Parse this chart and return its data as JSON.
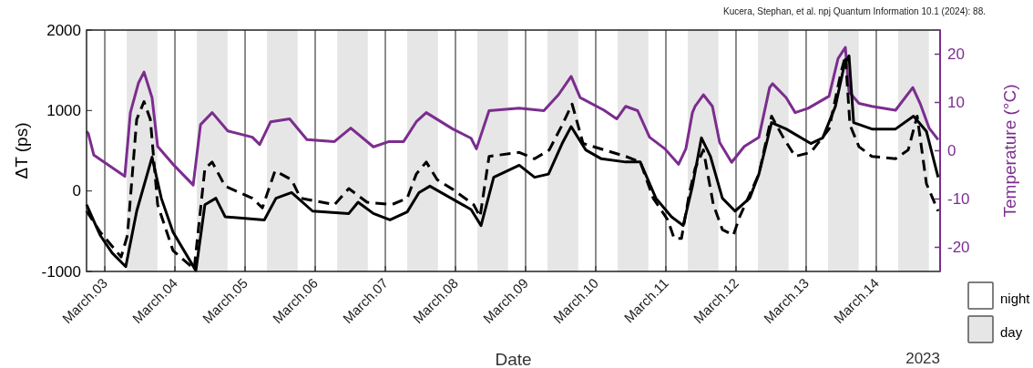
{
  "chart_data": {
    "type": "line",
    "xlabel": "Date",
    "ylabel": "ΔT (ps)",
    "y2label": "Temperature (°C)",
    "annotations": [
      "Kucera, Stephan, et al.  npj Quantum Information 10.1 (2024): 88.",
      "2023",
      "night"
    ],
    "xlim": [
      "2023-03-02T17:45",
      "2023-03-14T21:50"
    ],
    "xticks": [
      {
        "value": "2023-03-03",
        "label": "March.03"
      },
      {
        "value": "2023-03-04",
        "label": "March.04"
      },
      {
        "value": "2023-03-05",
        "label": "March.05"
      },
      {
        "value": "2023-03-06",
        "label": "March.06"
      },
      {
        "value": "2023-03-07",
        "label": "March.07"
      },
      {
        "value": "2023-03-08",
        "label": "March.08"
      },
      {
        "value": "2023-03-09",
        "label": "March.09"
      },
      {
        "value": "2023-03-10",
        "label": "March.10"
      },
      {
        "value": "2023-03-11",
        "label": "March.11"
      },
      {
        "value": "2023-03-12",
        "label": "March.12"
      },
      {
        "value": "2023-03-13",
        "label": "March.13"
      },
      {
        "value": "2023-03-14",
        "label": "March.14"
      }
    ],
    "ylim": [
      -1000,
      2000
    ],
    "yticks": [
      -1000,
      0,
      1000,
      2000
    ],
    "y2lim": [
      -25,
      25
    ],
    "y2ticks": [
      -20,
      -10,
      0,
      10,
      20
    ],
    "grid": "x",
    "legend": "bottom right",
    "bands": [
      {
        "axis": "x",
        "from": "2023-03-03T07:30",
        "to": "2023-03-03T18:00",
        "label": "day",
        "color": "#e6e6e6"
      },
      {
        "axis": "x",
        "from": "2023-03-04T07:30",
        "to": "2023-03-04T18:00",
        "color": "#e6e6e6"
      },
      {
        "axis": "x",
        "from": "2023-03-05T07:30",
        "to": "2023-03-05T18:00",
        "color": "#e6e6e6"
      },
      {
        "axis": "x",
        "from": "2023-03-06T07:30",
        "to": "2023-03-06T18:00",
        "color": "#e6e6e6"
      },
      {
        "axis": "x",
        "from": "2023-03-07T07:30",
        "to": "2023-03-07T18:00",
        "color": "#e6e6e6"
      },
      {
        "axis": "x",
        "from": "2023-03-08T07:30",
        "to": "2023-03-08T18:00",
        "color": "#e6e6e6"
      },
      {
        "axis": "x",
        "from": "2023-03-09T07:30",
        "to": "2023-03-09T18:00",
        "color": "#e6e6e6"
      },
      {
        "axis": "x",
        "from": "2023-03-10T07:30",
        "to": "2023-03-10T18:00",
        "color": "#e6e6e6"
      },
      {
        "axis": "x",
        "from": "2023-03-11T07:30",
        "to": "2023-03-11T18:00",
        "color": "#e6e6e6"
      },
      {
        "axis": "x",
        "from": "2023-03-12T07:30",
        "to": "2023-03-12T18:00",
        "color": "#e6e6e6"
      },
      {
        "axis": "x",
        "from": "2023-03-13T07:30",
        "to": "2023-03-13T18:00",
        "color": "#e6e6e6"
      },
      {
        "axis": "x",
        "from": "2023-03-14T07:30",
        "to": "2023-03-14T18:00",
        "color": "#e6e6e6"
      }
    ],
    "series": [
      {
        "color": "#7b2d8e",
        "axis": "y2",
        "line_style": "solid",
        "x": [
          "2023-03-02T17:45",
          "2023-03-02T18:20",
          "2023-03-02T20:15",
          "2023-03-03T06:50",
          "2023-03-03T08:45",
          "2023-03-03T11:30",
          "2023-03-03T13:25",
          "2023-03-03T16:10",
          "2023-03-03T18:05",
          "2023-03-03T23:20",
          "2023-03-04T06:15",
          "2023-03-04T08:45",
          "2023-03-04T12:45",
          "2023-03-04T18:05",
          "2023-03-05T02:30",
          "2023-03-05T05:00",
          "2023-03-05T08:45",
          "2023-03-05T15:15",
          "2023-03-05T21:10",
          "2023-03-06T06:35",
          "2023-03-06T12:10",
          "2023-03-06T19:55",
          "2023-03-07T01:15",
          "2023-03-07T06:15",
          "2023-03-07T10:35",
          "2023-03-07T14:00",
          "2023-03-07T23:05",
          "2023-03-08T05:20",
          "2023-03-08T07:10",
          "2023-03-08T11:30",
          "2023-03-08T21:50",
          "2023-03-09T06:15",
          "2023-03-09T11:15",
          "2023-03-09T15:35",
          "2023-03-09T18:40",
          "2023-03-10T02:50",
          "2023-03-10T07:10",
          "2023-03-10T10:15",
          "2023-03-10T14:20",
          "2023-03-10T18:25",
          "2023-03-10T23:40",
          "2023-03-11T04:20",
          "2023-03-11T06:50",
          "2023-03-11T09:05",
          "2023-03-11T10:00",
          "2023-03-11T12:50",
          "2023-03-11T15:55",
          "2023-03-11T18:25",
          "2023-03-11T22:30",
          "2023-03-12T02:50",
          "2023-03-12T07:50",
          "2023-03-12T11:30",
          "2023-03-12T12:30",
          "2023-03-12T17:10",
          "2023-03-12T20:15",
          "2023-03-13T00:40",
          "2023-03-13T07:50",
          "2023-03-13T10:55",
          "2023-03-13T13:25",
          "2023-03-13T14:40",
          "2023-03-13T18:05",
          "2023-03-13T22:30",
          "2023-03-14T06:35",
          "2023-03-14T12:30",
          "2023-03-14T15:00",
          "2023-03-14T18:05",
          "2023-03-14T21:10"
        ],
        "values": [
          4,
          3.6,
          -0.9,
          -5.3,
          7.9,
          14,
          16.3,
          11,
          0.9,
          -2.8,
          -7.1,
          5.4,
          7.9,
          4.1,
          2.8,
          1.3,
          6,
          6.6,
          2.3,
          1.9,
          4.7,
          0.8,
          1.9,
          1.9,
          6,
          7.9,
          4.5,
          2.6,
          0.4,
          8.3,
          8.8,
          8.3,
          11.6,
          15.4,
          11,
          8.4,
          6.6,
          9.2,
          8.3,
          2.8,
          0.4,
          -2.8,
          0.4,
          7.9,
          9.2,
          11.6,
          9.2,
          1.7,
          -2.4,
          0.9,
          2.8,
          13.1,
          13.9,
          11,
          7.9,
          8.8,
          11.3,
          19.1,
          21.4,
          12.2,
          9.8,
          9.2,
          8.4,
          13.1,
          9.8,
          4.7,
          2.3
        ]
      },
      {
        "color": "#000000",
        "line_style": "solid",
        "x": [
          "2023-03-02T17:45",
          "2023-03-02T22:25",
          "2023-03-03T02:30",
          "2023-03-03T07:10",
          "2023-03-03T10:55",
          "2023-03-03T16:10",
          "2023-03-03T19:20",
          "2023-03-03T23:20",
          "2023-03-04T07:10",
          "2023-03-04T10:15",
          "2023-03-04T14:00",
          "2023-03-04T17:10",
          "2023-03-05T06:35",
          "2023-03-05T10:35",
          "2023-03-05T15:55",
          "2023-03-05T23:05",
          "2023-03-06T11:30",
          "2023-03-06T14:40",
          "2023-03-06T19:55",
          "2023-03-07T01:35",
          "2023-03-07T07:30",
          "2023-03-07T11:30",
          "2023-03-07T15:15",
          "2023-03-08T05:20",
          "2023-03-08T08:45",
          "2023-03-08T13:05",
          "2023-03-08T21:50",
          "2023-03-09T03:05",
          "2023-03-09T07:50",
          "2023-03-09T12:30",
          "2023-03-09T15:35",
          "2023-03-09T20:35",
          "2023-03-10T01:55",
          "2023-03-10T10:15",
          "2023-03-10T15:15",
          "2023-03-10T20:35",
          "2023-03-11T01:55",
          "2023-03-11T05:55",
          "2023-03-11T09:05",
          "2023-03-11T12:10",
          "2023-03-11T15:15",
          "2023-03-11T19:20",
          "2023-03-11T23:40",
          "2023-03-12T04:40",
          "2023-03-12T07:50",
          "2023-03-12T12:10",
          "2023-03-12T17:10",
          "2023-03-13T01:35",
          "2023-03-13T05:40",
          "2023-03-13T10:00",
          "2023-03-13T13:05",
          "2023-03-13T14:40",
          "2023-03-13T16:15",
          "2023-03-13T22:30",
          "2023-03-14T06:35",
          "2023-03-14T12:45",
          "2023-03-14T17:10",
          "2023-03-14T21:10"
        ],
        "values": [
          -170,
          -550,
          -770,
          -940,
          -250,
          420,
          -90,
          -510,
          -990,
          -170,
          -90,
          -320,
          -360,
          -90,
          -20,
          -250,
          -280,
          -140,
          -280,
          -360,
          -260,
          -20,
          60,
          -230,
          -430,
          170,
          320,
          170,
          210,
          590,
          800,
          510,
          400,
          360,
          360,
          -90,
          -320,
          -430,
          60,
          660,
          430,
          -90,
          -250,
          -90,
          210,
          850,
          770,
          590,
          660,
          1050,
          1570,
          1680,
          850,
          770,
          770,
          930,
          740,
          170
        ]
      },
      {
        "color": "#000000",
        "line_style": "dashed",
        "x": [
          "2023-03-02T17:45",
          "2023-03-02T22:25",
          "2023-03-03T05:35",
          "2023-03-03T07:45",
          "2023-03-03T10:55",
          "2023-03-03T13:25",
          "2023-03-03T15:35",
          "2023-03-03T18:05",
          "2023-03-03T23:20",
          "2023-03-04T06:35",
          "2023-03-04T10:15",
          "2023-03-04T12:45",
          "2023-03-04T17:10",
          "2023-03-05T02:30",
          "2023-03-05T05:55",
          "2023-03-05T10:15",
          "2023-03-05T15:55",
          "2023-03-05T19:00",
          "2023-03-06T06:35",
          "2023-03-06T11:30",
          "2023-03-06T17:45",
          "2023-03-07T02:10",
          "2023-03-07T07:30",
          "2023-03-07T10:35",
          "2023-03-07T14:00",
          "2023-03-07T17:45",
          "2023-03-07T23:05",
          "2023-03-08T06:15",
          "2023-03-08T08:25",
          "2023-03-08T11:30",
          "2023-03-08T21:50",
          "2023-03-09T03:05",
          "2023-03-09T08:05",
          "2023-03-09T12:30",
          "2023-03-09T15:55",
          "2023-03-09T19:40",
          "2023-03-10T10:15",
          "2023-03-10T15:15",
          "2023-03-10T19:40",
          "2023-03-11T00:40",
          "2023-03-11T02:50",
          "2023-03-11T05:20",
          "2023-03-11T08:05",
          "2023-03-11T10:00",
          "2023-03-11T12:50",
          "2023-03-11T16:15",
          "2023-03-11T19:20",
          "2023-03-11T23:05",
          "2023-03-12T01:15",
          "2023-03-12T07:50",
          "2023-03-12T12:10",
          "2023-03-12T16:15",
          "2023-03-12T20:15",
          "2023-03-13T01:35",
          "2023-03-13T07:50",
          "2023-03-13T11:50",
          "2023-03-13T13:25",
          "2023-03-13T15:00",
          "2023-03-13T18:05",
          "2023-03-13T22:30",
          "2023-03-14T06:35",
          "2023-03-14T10:55",
          "2023-03-14T14:00",
          "2023-03-14T17:10",
          "2023-03-14T21:10"
        ],
        "values": [
          -250,
          -510,
          -820,
          -550,
          890,
          1110,
          890,
          -170,
          -740,
          -970,
          280,
          360,
          60,
          -90,
          -210,
          250,
          140,
          -90,
          -170,
          30,
          -140,
          -170,
          -90,
          210,
          360,
          140,
          20,
          -170,
          -320,
          430,
          480,
          400,
          510,
          820,
          1080,
          590,
          430,
          360,
          -90,
          -360,
          -590,
          -590,
          -20,
          280,
          510,
          -170,
          -480,
          -550,
          -320,
          210,
          930,
          660,
          430,
          480,
          770,
          1460,
          1680,
          820,
          550,
          430,
          400,
          510,
          930,
          90,
          -250
        ]
      }
    ]
  }
}
